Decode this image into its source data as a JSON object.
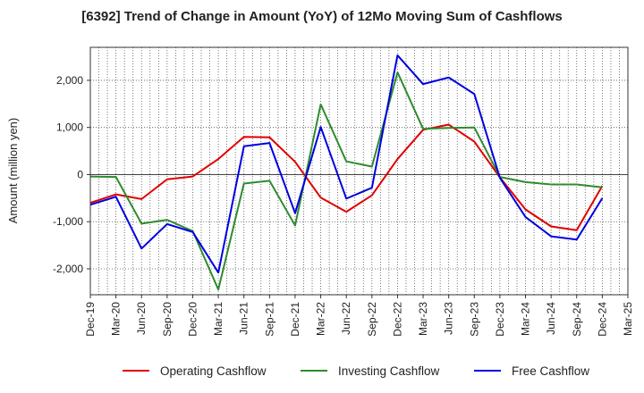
{
  "chart_data": {
    "type": "line",
    "title": "[6392]  Trend of Change in Amount (YoY) of 12Mo Moving Sum of Cashflows",
    "xlabel": "",
    "ylabel": "Amount (million yen)",
    "ylim": [
      -2550,
      2700
    ],
    "yticks": [
      -2000,
      -1000,
      0,
      1000,
      2000
    ],
    "ytick_labels": [
      "-2,000",
      "-1,000",
      "0",
      "1,000",
      "2,000"
    ],
    "x_tick_labels": [
      "Dec-19",
      "Mar-20",
      "Jun-20",
      "Sep-20",
      "Dec-20",
      "Mar-21",
      "Jun-21",
      "Sep-21",
      "Dec-21",
      "Mar-22",
      "Jun-22",
      "Sep-22",
      "Dec-22",
      "Mar-23",
      "Jun-23",
      "Sep-23",
      "Dec-23",
      "Mar-24",
      "Jun-24",
      "Sep-24",
      "Dec-24",
      "Mar-25"
    ],
    "grid": true,
    "legend_position": "bottom",
    "series": [
      {
        "name": "Operating Cashflow",
        "color": "#e00000",
        "values": [
          -600,
          -420,
          -520,
          -100,
          -40,
          330,
          800,
          790,
          270,
          -490,
          -790,
          -440,
          330,
          950,
          1060,
          700,
          -60,
          -740,
          -1100,
          -1180,
          -240
        ]
      },
      {
        "name": "Investing Cashflow",
        "color": "#2e8b2e",
        "values": [
          -40,
          -50,
          -1040,
          -960,
          -1200,
          -2440,
          -190,
          -130,
          -1080,
          1490,
          280,
          170,
          2170,
          970,
          990,
          1000,
          -50,
          -160,
          -210,
          -210,
          -270
        ]
      },
      {
        "name": "Free Cashflow",
        "color": "#0000e0",
        "values": [
          -640,
          -470,
          -1570,
          -1050,
          -1220,
          -2080,
          600,
          670,
          -820,
          1010,
          -510,
          -280,
          2530,
          1920,
          2060,
          1710,
          -70,
          -900,
          -1310,
          -1380,
          -500
        ]
      }
    ]
  }
}
